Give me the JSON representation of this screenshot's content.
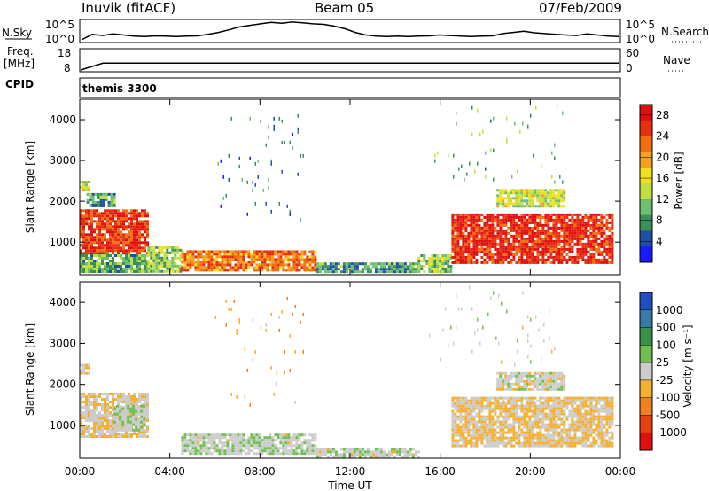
{
  "header": {
    "station": "Inuvik (fitACF)",
    "beam": "Beam 05",
    "date": "07/Feb/2009"
  },
  "chart_data": [
    {
      "type": "line",
      "panel": "noise",
      "left_label": "N.Sky",
      "right_label": "N.Search",
      "left_ticks": [
        "10^5",
        "10^0"
      ],
      "right_ticks": [
        "10^5",
        "10^0"
      ],
      "yscale": "log",
      "ylim": [
        1,
        100000
      ],
      "series": [
        {
          "values": [
            1,
            30,
            15,
            40,
            20,
            10,
            8,
            12,
            10,
            8,
            10,
            12,
            30,
            100,
            500,
            3000,
            8000,
            20000,
            50000,
            30000,
            60000,
            40000,
            20000,
            15000,
            5000,
            1000,
            100,
            20,
            10,
            8,
            10,
            8,
            10,
            12,
            20,
            15,
            10,
            8,
            10,
            12,
            50,
            100,
            200,
            80,
            50,
            30,
            20,
            15,
            40,
            20,
            10,
            8
          ]
        }
      ]
    },
    {
      "type": "line",
      "panel": "frequency",
      "left_label": "Freq.",
      "left_unit": "[MHz]",
      "right_label": "Nave",
      "left_ticks": [
        "18",
        "8"
      ],
      "right_ticks": [
        "60",
        "0"
      ],
      "ylim": [
        8,
        18
      ],
      "values": [
        8,
        11.5,
        11.5,
        11.5,
        11.5,
        11.5,
        11.5,
        11.5,
        11.5,
        11.5,
        11.5,
        11.5,
        11.5,
        11.5,
        11.5,
        11.5,
        11.5,
        11.5,
        11.5,
        11.5,
        11.5,
        11.5,
        11.5,
        11.5,
        11.5
      ]
    },
    {
      "type": "text",
      "panel": "cpid",
      "label": "CPID",
      "value": "themis 3300"
    },
    {
      "type": "heatmap",
      "panel": "power",
      "ylabel": "Slant Range [km]",
      "yticks": [
        "1000",
        "2000",
        "3000",
        "4000"
      ],
      "ylim": [
        200,
        4500
      ],
      "xlim": [
        0,
        24
      ],
      "colorbar_label": "Power [dB]",
      "colorbar_ticks": [
        "4",
        "8",
        "12",
        "16",
        "20",
        "24",
        "28"
      ],
      "colorbar_range": [
        0,
        30
      ],
      "colors": [
        "#1a1aff",
        "#1f4fa8",
        "#3a8f5a",
        "#6ec06e",
        "#bfe040",
        "#f0e020",
        "#f5a020",
        "#f07010",
        "#e83010",
        "#e01010"
      ],
      "regions": [
        {
          "t0": 0.0,
          "t1": 3.0,
          "r0": 700,
          "r1": 1800,
          "level": 26
        },
        {
          "t0": 0.0,
          "t1": 0.4,
          "r0": 2300,
          "r1": 2500,
          "level": 14
        },
        {
          "t0": 0.3,
          "t1": 1.5,
          "r0": 1900,
          "r1": 2200,
          "level": 8
        },
        {
          "t0": 0.0,
          "t1": 3.0,
          "r0": 300,
          "r1": 700,
          "level": 10
        },
        {
          "t0": 3.0,
          "t1": 4.5,
          "r0": 300,
          "r1": 900,
          "level": 12
        },
        {
          "t0": 4.5,
          "t1": 10.5,
          "r0": 300,
          "r1": 800,
          "level": 22
        },
        {
          "t0": 10.5,
          "t1": 15.0,
          "r0": 250,
          "r1": 500,
          "level": 8
        },
        {
          "t0": 15.0,
          "t1": 16.5,
          "r0": 300,
          "r1": 700,
          "level": 12
        },
        {
          "t0": 16.5,
          "t1": 23.7,
          "r0": 500,
          "r1": 1700,
          "level": 27
        },
        {
          "t0": 18.5,
          "t1": 21.5,
          "r0": 1900,
          "r1": 2300,
          "level": 14
        },
        {
          "t0": 6.0,
          "t1": 10.0,
          "r0": 1500,
          "r1": 4200,
          "level": 6,
          "sparse": true
        },
        {
          "t0": 15.5,
          "t1": 21.5,
          "r0": 2500,
          "r1": 4400,
          "level": 10,
          "sparse": true
        }
      ]
    },
    {
      "type": "heatmap",
      "panel": "velocity",
      "ylabel": "Slant Range [km]",
      "yticks": [
        "1000",
        "2000",
        "3000",
        "4000"
      ],
      "ylim": [
        200,
        4500
      ],
      "xlim": [
        0,
        24
      ],
      "xticks": [
        "00:00",
        "04:00",
        "08:00",
        "12:00",
        "16:00",
        "20:00",
        "00:00"
      ],
      "xlabel": "Time UT",
      "colorbar_label": "Velocity [m s⁻¹]",
      "colorbar_ticks": [
        "1000",
        "500",
        "100",
        "25",
        "-25",
        "-100",
        "-500",
        "-1000"
      ],
      "colorbar_range": [
        -1200,
        1200
      ],
      "colors": [
        "#2050c0",
        "#3a7aa8",
        "#3a8f4a",
        "#6fc050",
        "#cccccc",
        "#f5b030",
        "#f08020",
        "#e84010",
        "#e01010"
      ],
      "regions": [
        {
          "t0": 0.0,
          "t1": 3.0,
          "r0": 700,
          "r1": 1800,
          "level": -80
        },
        {
          "t0": 1.5,
          "t1": 2.8,
          "r0": 900,
          "r1": 1500,
          "level": 90
        },
        {
          "t0": 0.0,
          "t1": 0.4,
          "r0": 2300,
          "r1": 2500,
          "level": -100
        },
        {
          "t0": 4.5,
          "t1": 10.5,
          "r0": 300,
          "r1": 800,
          "level": 60
        },
        {
          "t0": 10.5,
          "t1": 15.0,
          "r0": 250,
          "r1": 450,
          "level": 40
        },
        {
          "t0": 16.5,
          "t1": 23.7,
          "r0": 500,
          "r1": 1700,
          "level": -150
        },
        {
          "t0": 18.5,
          "t1": 21.5,
          "r0": 1900,
          "r1": 2300,
          "level": 0
        },
        {
          "t0": 6.0,
          "t1": 10.0,
          "r0": 1500,
          "r1": 4200,
          "level": -300,
          "sparse": true
        },
        {
          "t0": 15.5,
          "t1": 21.5,
          "r0": 2500,
          "r1": 4400,
          "level": 50,
          "sparse": true
        }
      ]
    }
  ]
}
